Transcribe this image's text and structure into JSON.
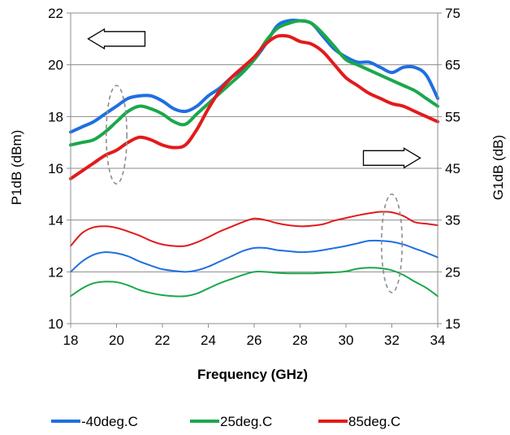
{
  "chart_data": {
    "type": "line",
    "title": "",
    "xlabel": "Frequency (GHz)",
    "ylabel_left": "P1dB (dBm)",
    "ylabel_right": "G1dB (dB)",
    "xlim": [
      18,
      34
    ],
    "ylim_left": [
      10,
      22
    ],
    "ylim_right": [
      15,
      75
    ],
    "x_ticks": [
      18,
      20,
      22,
      24,
      26,
      28,
      30,
      32,
      34
    ],
    "y_left_ticks": [
      10,
      12,
      14,
      16,
      18,
      20,
      22
    ],
    "y_right_ticks": [
      15,
      25,
      35,
      45,
      55,
      65,
      75
    ],
    "grid": "horizontal",
    "legend_position": "bottom",
    "annotations": [
      {
        "type": "arrow",
        "direction": "left",
        "x": 20,
        "y": 21
      },
      {
        "type": "arrow",
        "direction": "right",
        "x": 32,
        "y": 16.4
      },
      {
        "type": "ellipse",
        "x": 20,
        "y": 17.3,
        "rx": 0.45,
        "ry": 1.9
      },
      {
        "type": "ellipse",
        "x": 32,
        "y": 13.1,
        "rx": 0.45,
        "ry": 1.9
      }
    ],
    "series": [
      {
        "name": "-40deg.C",
        "color": "#1f6fe0",
        "axis": "left",
        "x": [
          18,
          18.5,
          19,
          19.5,
          20,
          20.5,
          21,
          21.5,
          22,
          22.5,
          23,
          23.5,
          24,
          24.5,
          25,
          25.5,
          26,
          26.5,
          27,
          27.5,
          28,
          28.5,
          29,
          29.5,
          30,
          30.5,
          31,
          31.5,
          32,
          32.5,
          33,
          33.5,
          34
        ],
        "values": [
          17.4,
          17.6,
          17.8,
          18.1,
          18.4,
          18.7,
          18.8,
          18.8,
          18.6,
          18.3,
          18.2,
          18.4,
          18.8,
          19.1,
          19.5,
          19.8,
          20.2,
          20.8,
          21.5,
          21.7,
          21.7,
          21.6,
          21.1,
          20.6,
          20.3,
          20.1,
          20.1,
          19.9,
          19.7,
          19.9,
          19.9,
          19.6,
          18.7
        ]
      },
      {
        "name": "25deg.C",
        "color": "#1aa84a",
        "axis": "left",
        "x": [
          18,
          18.5,
          19,
          19.5,
          20,
          20.5,
          21,
          21.5,
          22,
          22.5,
          23,
          23.5,
          24,
          24.5,
          25,
          25.5,
          26,
          26.5,
          27,
          27.5,
          28,
          28.5,
          29,
          29.5,
          30,
          30.5,
          31,
          31.5,
          32,
          32.5,
          33,
          33.5,
          34
        ],
        "values": [
          16.9,
          17.0,
          17.1,
          17.4,
          17.8,
          18.2,
          18.4,
          18.3,
          18.1,
          17.8,
          17.7,
          18.1,
          18.5,
          18.9,
          19.3,
          19.7,
          20.2,
          20.9,
          21.4,
          21.6,
          21.7,
          21.6,
          21.2,
          20.7,
          20.2,
          20.0,
          19.8,
          19.6,
          19.4,
          19.2,
          19.0,
          18.7,
          18.4
        ]
      },
      {
        "name": "85deg.C",
        "color": "#e31a1a",
        "axis": "left",
        "x": [
          18,
          18.5,
          19,
          19.5,
          20,
          20.5,
          21,
          21.5,
          22,
          22.5,
          23,
          23.5,
          24,
          24.5,
          25,
          25.5,
          26,
          26.5,
          27,
          27.5,
          28,
          28.5,
          29,
          29.5,
          30,
          30.5,
          31,
          31.5,
          32,
          32.5,
          33,
          33.5,
          34
        ],
        "values": [
          15.6,
          15.9,
          16.2,
          16.5,
          16.7,
          17.0,
          17.2,
          17.1,
          16.9,
          16.8,
          16.9,
          17.5,
          18.3,
          19.0,
          19.5,
          19.9,
          20.3,
          20.8,
          21.1,
          21.1,
          20.9,
          20.8,
          20.5,
          20.0,
          19.5,
          19.2,
          18.9,
          18.7,
          18.5,
          18.4,
          18.2,
          18.0,
          17.8
        ]
      },
      {
        "name": "-40deg.C",
        "color": "#1f6fe0",
        "axis": "right",
        "x": [
          18,
          18.5,
          19,
          19.5,
          20,
          20.5,
          21,
          21.5,
          22,
          22.5,
          23,
          23.5,
          24,
          24.5,
          25,
          25.5,
          26,
          26.5,
          27,
          27.5,
          28,
          28.5,
          29,
          29.5,
          30,
          30.5,
          31,
          31.5,
          32,
          32.5,
          33,
          33.5,
          34
        ],
        "values": [
          25.0,
          27.0,
          28.3,
          28.8,
          28.6,
          28.0,
          27.0,
          26.2,
          25.5,
          25.2,
          25.0,
          25.3,
          26.0,
          27.0,
          28.0,
          29.0,
          29.6,
          29.6,
          29.2,
          29.0,
          28.8,
          28.9,
          29.2,
          29.6,
          30.0,
          30.5,
          31.0,
          31.0,
          30.8,
          30.3,
          29.5,
          28.7,
          27.8
        ]
      },
      {
        "name": "25deg.C",
        "color": "#1aa84a",
        "axis": "right",
        "x": [
          18,
          18.5,
          19,
          19.5,
          20,
          20.5,
          21,
          21.5,
          22,
          22.5,
          23,
          23.5,
          24,
          24.5,
          25,
          25.5,
          26,
          26.5,
          27,
          27.5,
          28,
          28.5,
          29,
          29.5,
          30,
          30.5,
          31,
          31.5,
          32,
          32.5,
          33,
          33.5,
          34
        ],
        "values": [
          20.3,
          21.8,
          22.8,
          23.1,
          23.0,
          22.4,
          21.5,
          20.9,
          20.5,
          20.3,
          20.3,
          20.8,
          21.8,
          22.8,
          23.6,
          24.4,
          25.0,
          25.0,
          24.8,
          24.7,
          24.7,
          24.7,
          24.8,
          24.9,
          25.1,
          25.6,
          25.8,
          25.7,
          25.3,
          24.4,
          23.1,
          21.9,
          20.3
        ]
      },
      {
        "name": "85deg.C",
        "color": "#e31a1a",
        "axis": "right",
        "x": [
          18,
          18.5,
          19,
          19.5,
          20,
          20.5,
          21,
          21.5,
          22,
          22.5,
          23,
          23.5,
          24,
          24.5,
          25,
          25.5,
          26,
          26.5,
          27,
          27.5,
          28,
          28.5,
          29,
          29.5,
          30,
          30.5,
          31,
          31.5,
          32,
          32.5,
          33,
          33.5,
          34
        ],
        "values": [
          30.0,
          32.5,
          33.6,
          33.8,
          33.5,
          32.8,
          32.0,
          31.0,
          30.3,
          30.0,
          30.0,
          30.7,
          31.7,
          32.8,
          33.7,
          34.6,
          35.3,
          35.0,
          34.4,
          34.0,
          33.8,
          33.9,
          34.2,
          34.9,
          35.4,
          35.9,
          36.3,
          36.6,
          36.5,
          35.8,
          34.6,
          34.3,
          34.0
        ]
      }
    ],
    "legend": [
      {
        "name": "-40deg.C",
        "color": "#1f6fe0"
      },
      {
        "name": "25deg.C",
        "color": "#1aa84a"
      },
      {
        "name": "85deg.C",
        "color": "#e31a1a"
      }
    ]
  }
}
